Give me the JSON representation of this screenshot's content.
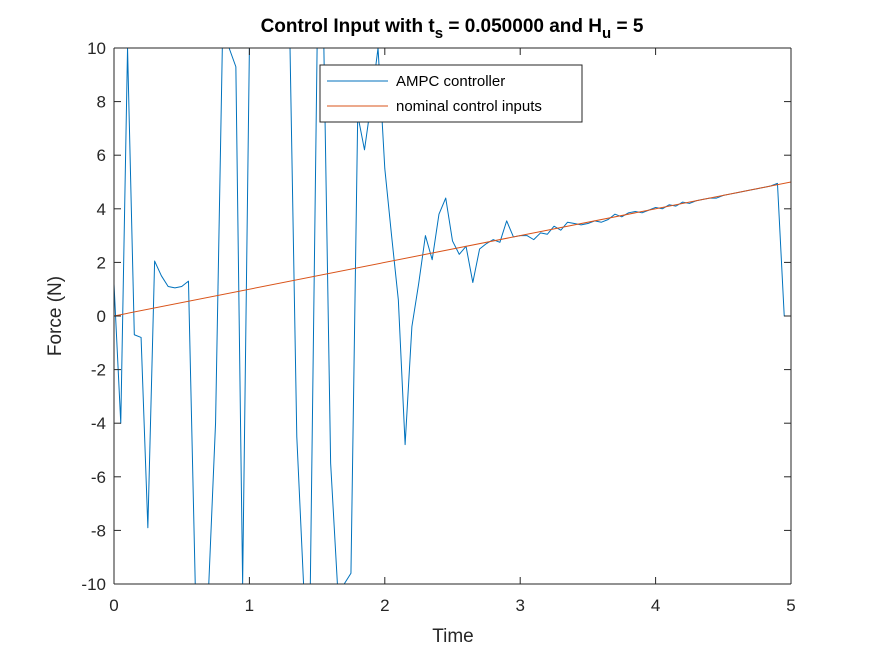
{
  "chart_data": {
    "type": "line",
    "title_main": "Control Input with t",
    "title_sub1": "s",
    "title_mid": " = 0.050000 and H",
    "title_sub2": "u",
    "title_end": " = 5",
    "xlabel": "Time",
    "ylabel": "Force (N)",
    "xlim": [
      0,
      5
    ],
    "ylim": [
      -10,
      10
    ],
    "x_ticks": [
      0,
      1,
      2,
      3,
      4,
      5
    ],
    "y_ticks": [
      -10,
      -8,
      -6,
      -4,
      -2,
      0,
      2,
      4,
      6,
      8,
      10
    ],
    "x_tick_labels": [
      "0",
      "1",
      "2",
      "3",
      "4",
      "5"
    ],
    "y_tick_labels": [
      "-10",
      "-8",
      "-6",
      "-4",
      "-2",
      "0",
      "2",
      "4",
      "6",
      "8",
      "10"
    ],
    "grid": false,
    "legend_position": "top-center",
    "series": [
      {
        "name": "AMPC controller",
        "color": "#0072bd",
        "x": [
          0,
          0.05,
          0.1,
          0.15,
          0.2,
          0.25,
          0.3,
          0.35,
          0.4,
          0.45,
          0.5,
          0.55,
          0.6,
          0.65,
          0.7,
          0.75,
          0.8,
          0.85,
          0.9,
          0.95,
          1.0,
          1.05,
          1.1,
          1.15,
          1.2,
          1.25,
          1.3,
          1.35,
          1.4,
          1.45,
          1.5,
          1.55,
          1.6,
          1.65,
          1.7,
          1.75,
          1.8,
          1.85,
          1.9,
          1.95,
          2.0,
          2.05,
          2.1,
          2.15,
          2.2,
          2.25,
          2.3,
          2.35,
          2.4,
          2.45,
          2.5,
          2.55,
          2.6,
          2.65,
          2.7,
          2.75,
          2.8,
          2.85,
          2.9,
          2.95,
          3.0,
          3.05,
          3.1,
          3.15,
          3.2,
          3.25,
          3.3,
          3.35,
          3.4,
          3.45,
          3.5,
          3.55,
          3.6,
          3.65,
          3.7,
          3.75,
          3.8,
          3.85,
          3.9,
          3.95,
          4.0,
          4.05,
          4.1,
          4.15,
          4.2,
          4.25,
          4.3,
          4.35,
          4.4,
          4.45,
          4.5,
          4.55,
          4.6,
          4.65,
          4.7,
          4.75,
          4.8,
          4.85,
          4.9,
          4.95,
          5.0
        ],
        "y": [
          1.2,
          -4.0,
          10.0,
          -0.7,
          -0.8,
          -7.9,
          2.05,
          1.5,
          1.1,
          1.05,
          1.1,
          1.3,
          -10.0,
          -10.0,
          -10.0,
          -4.0,
          10.0,
          10.0,
          9.3,
          -10.0,
          10.0,
          10.0,
          10.0,
          10.0,
          10.0,
          10.0,
          10.0,
          -4.5,
          -10.0,
          -10.0,
          10.0,
          10.0,
          -5.5,
          -10.0,
          -10.0,
          -9.6,
          7.5,
          6.2,
          8.0,
          10.0,
          5.5,
          3.0,
          0.6,
          -4.8,
          -0.4,
          1.2,
          3.0,
          2.1,
          3.8,
          4.4,
          2.8,
          2.3,
          2.6,
          1.25,
          2.5,
          2.7,
          2.85,
          2.75,
          3.55,
          2.95,
          3.0,
          3.0,
          2.85,
          3.1,
          3.05,
          3.35,
          3.2,
          3.5,
          3.45,
          3.4,
          3.45,
          3.55,
          3.5,
          3.6,
          3.8,
          3.7,
          3.85,
          3.9,
          3.85,
          3.95,
          4.05,
          4.0,
          4.15,
          4.1,
          4.25,
          4.2,
          4.3,
          4.35,
          4.4,
          4.4,
          4.5,
          4.55,
          4.6,
          4.65,
          4.7,
          4.75,
          4.8,
          4.85,
          4.95,
          0.0,
          0.0
        ]
      },
      {
        "name": "nominal control inputs",
        "color": "#d95319",
        "x": [
          0,
          5
        ],
        "y": [
          0,
          5
        ]
      }
    ]
  }
}
